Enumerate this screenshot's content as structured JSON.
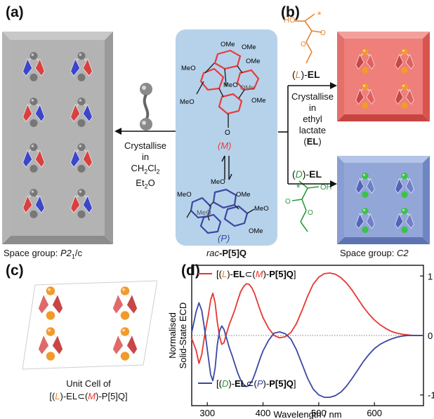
{
  "panels": {
    "a": {
      "letter": "(a)",
      "caption_prefix": "Space group: ",
      "caption_symbol": "P2",
      "caption_sub": "1",
      "caption_suffix": "/c"
    },
    "b": {
      "letter": "(b)",
      "caption_prefix": "Space group: ",
      "caption_symbol": "C2",
      "l_label_open": "(",
      "l_label_letter": "L",
      "l_label_close": ")-",
      "l_label_bold": "EL",
      "d_label_open": "(",
      "d_label_letter": "D",
      "d_label_close": ")-",
      "d_label_bold": "EL",
      "crystallise_lines": [
        "Crystallise",
        "in",
        "ethyl",
        "lactate"
      ],
      "el_abbrev_open": "(",
      "el_abbrev_bold": "EL",
      "el_abbrev_close": ")",
      "lactate_top_atom": "HO",
      "lactate_bottom_atom": "OH",
      "stereo_star": "*"
    },
    "center": {
      "caption_prefix": "rac",
      "caption_bold": "-P[5]Q",
      "ome_labels": [
        "OMe",
        "OMe",
        "MeO",
        "OMe",
        "MeO",
        "OMe",
        "MeO",
        "OMe",
        "MeO",
        "MeO",
        "OMe",
        "MeO",
        "MeO",
        "OMe"
      ],
      "o_label": "O",
      "m_label": "(M)",
      "p_label": "(P)"
    },
    "left_arrow": {
      "lines": [
        "Crystallise",
        "in"
      ],
      "solvent1_prefix": "CH",
      "solvent1_sub": "2",
      "solvent1_mid": "Cl",
      "solvent1_sub2": "2",
      "solvent2_prefix": "Et",
      "solvent2_sub": "2",
      "solvent2_suffix": "O"
    },
    "c": {
      "letter": "(c)",
      "caption_line1": "Unit Cell of",
      "caption_line2_open": "[(",
      "caption_line2_l": "L",
      "caption_line2_mid": ")-EL⊂(",
      "caption_line2_m": "M",
      "caption_line2_close": ")-P[5]Q]"
    },
    "d": {
      "letter": "(d)"
    }
  },
  "chart_data": {
    "type": "line",
    "ylabel_line1": "Normalised",
    "ylabel_line2": "Solid-State ECD",
    "xlabel": "Wavelength / nm",
    "xlim": [
      272,
      688
    ],
    "ylim": [
      -1.18,
      1.18
    ],
    "x_ticks": [
      300,
      400,
      500,
      600
    ],
    "y_ticks": [
      1,
      0,
      -1
    ],
    "y_tick_labels": [
      "1",
      "0",
      "-1"
    ],
    "zero_line": true,
    "series": [
      {
        "name": "[(L)-EL⊂(M)-P[5]Q]",
        "color": "#e8362e",
        "x": [
          272,
          280,
          285,
          290,
          296,
          302,
          306,
          310,
          314,
          318,
          322,
          326,
          330,
          335,
          340,
          345,
          350,
          355,
          360,
          365,
          370,
          375,
          380,
          385,
          390,
          395,
          400,
          410,
          420,
          430,
          440,
          450,
          460,
          470,
          480,
          490,
          500,
          510,
          520,
          530,
          540,
          550,
          560,
          570,
          580,
          590,
          600,
          610,
          620,
          630,
          640,
          650,
          660,
          670,
          680,
          688
        ],
        "y": [
          -0.05,
          -0.25,
          -0.47,
          -0.32,
          0.05,
          0.35,
          0.6,
          0.71,
          0.55,
          0.22,
          -0.02,
          -0.15,
          -0.12,
          0.05,
          0.2,
          0.32,
          0.45,
          0.6,
          0.74,
          0.82,
          0.87,
          0.86,
          0.8,
          0.7,
          0.56,
          0.42,
          0.3,
          0.12,
          0.0,
          -0.04,
          -0.02,
          0.05,
          0.2,
          0.42,
          0.66,
          0.86,
          0.98,
          1.04,
          1.05,
          1.03,
          0.97,
          0.88,
          0.76,
          0.62,
          0.48,
          0.36,
          0.26,
          0.18,
          0.12,
          0.07,
          0.04,
          0.02,
          0.01,
          0.0,
          0.0,
          0.0
        ]
      },
      {
        "name": "[(D)-EL⊂(P)-P[5]Q]",
        "color": "#3b47a3",
        "x": [
          272,
          280,
          285,
          290,
          296,
          302,
          306,
          310,
          314,
          318,
          322,
          326,
          330,
          335,
          340,
          345,
          350,
          355,
          360,
          365,
          370,
          375,
          380,
          385,
          390,
          395,
          400,
          410,
          420,
          430,
          440,
          450,
          460,
          470,
          480,
          490,
          500,
          510,
          520,
          530,
          540,
          550,
          560,
          570,
          580,
          590,
          600,
          610,
          620,
          630,
          640,
          650,
          660,
          670,
          680,
          688
        ],
        "y": [
          0.05,
          0.4,
          0.55,
          0.42,
          0.05,
          -0.38,
          -0.66,
          -0.76,
          -0.55,
          -0.15,
          0.08,
          0.16,
          0.1,
          -0.06,
          -0.22,
          -0.35,
          -0.5,
          -0.64,
          -0.75,
          -0.82,
          -0.86,
          -0.84,
          -0.77,
          -0.66,
          -0.52,
          -0.38,
          -0.26,
          -0.08,
          0.04,
          0.06,
          0.03,
          -0.06,
          -0.24,
          -0.48,
          -0.72,
          -0.9,
          -1.0,
          -1.04,
          -1.04,
          -1.01,
          -0.95,
          -0.85,
          -0.72,
          -0.58,
          -0.44,
          -0.32,
          -0.22,
          -0.15,
          -0.1,
          -0.06,
          -0.03,
          -0.01,
          0.0,
          0.0,
          0.0,
          0.0
        ]
      }
    ],
    "legend": "inside, top and bottom",
    "legend_top": {
      "open": "[(",
      "l": "L",
      "mid1": ")-",
      "el": "EL",
      "sub": "⊂(",
      "m": "M",
      "close1": ")-",
      "q": "P[5]Q",
      "end": "]"
    },
    "legend_bottom": {
      "open": "[(",
      "d": "D",
      "mid1": ")-",
      "el": "EL",
      "sub": "⊂(",
      "p": "P",
      "close1": ")-",
      "q": "P[5]Q",
      "end": "]"
    }
  }
}
